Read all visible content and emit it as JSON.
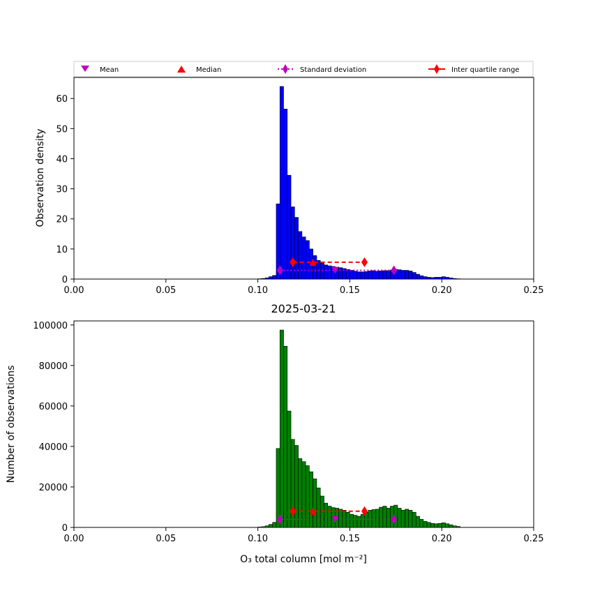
{
  "chart_data": [
    {
      "type": "bar",
      "subtype": "histogram",
      "ylabel": "Observation density",
      "xlim": [
        0.0,
        0.25
      ],
      "ylim": [
        0,
        67
      ],
      "xticks": [
        "0.00",
        "0.05",
        "0.10",
        "0.15",
        "0.20",
        "0.25"
      ],
      "yticks": [
        "0",
        "10",
        "20",
        "30",
        "40",
        "50",
        "60"
      ],
      "bar_color": "#0000ff",
      "edge_color": "#000000",
      "bin_start": 0.1,
      "bin_width": 0.002,
      "values": [
        0.1,
        0.2,
        0.4,
        0.8,
        1.2,
        25.0,
        64.0,
        56.5,
        34.5,
        24.0,
        20.5,
        15.8,
        14.0,
        12.8,
        10.0,
        7.8,
        6.2,
        5.3,
        4.7,
        4.4,
        4.2,
        4.0,
        3.8,
        3.5,
        3.2,
        2.9,
        2.6,
        2.4,
        2.4,
        2.5,
        2.7,
        2.8,
        2.6,
        2.7,
        2.8,
        2.8,
        3.0,
        3.2,
        3.1,
        2.9,
        2.9,
        2.7,
        2.2,
        1.6,
        1.1,
        0.8,
        0.6,
        0.5,
        0.6,
        0.6,
        0.8,
        0.6,
        0.4,
        0.2,
        0.1
      ],
      "annotations": {
        "mean": {
          "x": 0.142,
          "y": 2.9
        },
        "median": {
          "x": 0.13,
          "y": 5.6
        },
        "std_dev": {
          "x": [
            0.112,
            0.174
          ],
          "y": 2.9
        },
        "iqr": {
          "x": [
            0.119,
            0.158
          ],
          "y": 5.6
        }
      },
      "legend": [
        "Mean",
        "Median",
        "Standard deviation",
        "Inter quartile range"
      ],
      "legend_position": "top"
    },
    {
      "type": "bar",
      "subtype": "histogram",
      "title": "2025-03-21",
      "xlabel": "O₃ total column [mol m⁻²]",
      "ylabel": "Number of observations",
      "xlim": [
        0.0,
        0.25
      ],
      "ylim": [
        0,
        102000
      ],
      "xticks": [
        "0.00",
        "0.05",
        "0.10",
        "0.15",
        "0.20",
        "0.25"
      ],
      "yticks": [
        "0",
        "20000",
        "40000",
        "60000",
        "80000",
        "100000"
      ],
      "bar_color": "#008000",
      "edge_color": "#000000",
      "bin_start": 0.1,
      "bin_width": 0.002,
      "values": [
        200,
        400,
        800,
        1500,
        2500,
        39000,
        97500,
        89500,
        57500,
        43500,
        40500,
        34000,
        32500,
        30500,
        27500,
        24000,
        19500,
        15500,
        12000,
        10500,
        9800,
        9500,
        9000,
        8500,
        7500,
        6500,
        6000,
        5500,
        6500,
        7500,
        8500,
        8800,
        9000,
        10000,
        10500,
        9500,
        10500,
        11000,
        9500,
        8500,
        9000,
        8500,
        7500,
        5500,
        4000,
        3000,
        2500,
        2000,
        1800,
        2000,
        2300,
        1800,
        1300,
        800,
        500
      ],
      "annotations": {
        "mean": {
          "x": 0.142,
          "y": 4000
        },
        "median": {
          "x": 0.13,
          "y": 8000
        },
        "std_dev": {
          "x": [
            0.112,
            0.174
          ],
          "y": 4000
        },
        "iqr": {
          "x": [
            0.119,
            0.158
          ],
          "y": 8000
        }
      },
      "annotation_colors": {
        "std_dev_line": "#555555"
      }
    }
  ],
  "legend_labels": {
    "mean": "Mean",
    "median": "Median",
    "std": "Standard deviation",
    "iqr": "Inter quartile range"
  },
  "colors": {
    "mean": "#bf00bf",
    "median": "#ff0000",
    "std": "#bf00bf",
    "iqr": "#ff0000"
  }
}
